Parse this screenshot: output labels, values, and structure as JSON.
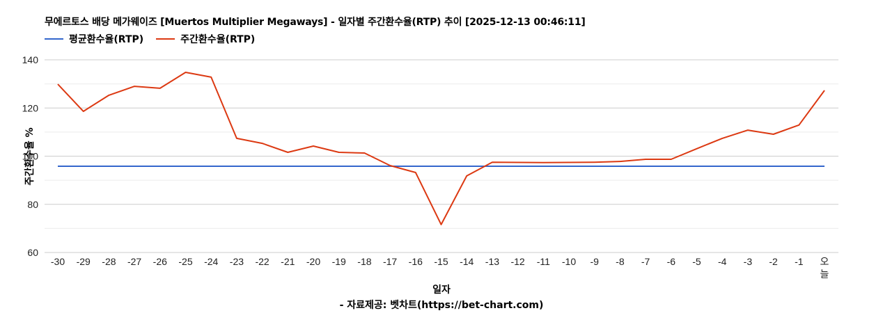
{
  "chart_data": {
    "type": "line",
    "title": "무에르토스 배당  메가웨이즈 [Muertos Multiplier Megaways] - 일자별 주간환수율(RTP) 추이 [2025-12-13 00:46:11]",
    "xlabel": "일자",
    "ylabel": "주간환수율 %",
    "ylim": [
      60,
      140
    ],
    "yticks": [
      60,
      80,
      100,
      120,
      140
    ],
    "grid": true,
    "legend_position": "top-left",
    "categories": [
      "-30",
      "-29",
      "-28",
      "-27",
      "-26",
      "-25",
      "-24",
      "-23",
      "-22",
      "-21",
      "-20",
      "-19",
      "-18",
      "-17",
      "-16",
      "-15",
      "-14",
      "-13",
      "-12",
      "-11",
      "-10",
      "-9",
      "-8",
      "-7",
      "-6",
      "-5",
      "-4",
      "-3",
      "-2",
      "-1",
      "오늘"
    ],
    "series": [
      {
        "name": "평균환수율(RTP)",
        "color": "#3366cc",
        "values": [
          95.8,
          95.8,
          95.8,
          95.8,
          95.8,
          95.8,
          95.8,
          95.8,
          95.8,
          95.8,
          95.8,
          95.8,
          95.8,
          95.8,
          95.8,
          95.8,
          95.8,
          95.8,
          95.8,
          95.8,
          95.8,
          95.8,
          95.8,
          95.8,
          95.8,
          95.8,
          95.8,
          95.8,
          95.8,
          95.8,
          95.8
        ]
      },
      {
        "name": "주간환수율(RTP)",
        "color": "#dc3912",
        "values": [
          129.9,
          118.6,
          125.3,
          129.0,
          128.2,
          134.8,
          132.8,
          107.4,
          105.3,
          101.6,
          104.2,
          101.6,
          101.3,
          96.1,
          93.2,
          71.6,
          91.8,
          97.5,
          97.4,
          97.3,
          97.4,
          97.5,
          97.8,
          98.7,
          98.7,
          103.1,
          107.4,
          110.8,
          109.1,
          112.9,
          127.3
        ]
      }
    ],
    "credit": "- 자료제공: 벳차트(https://bet-chart.com)"
  },
  "header": {
    "title": "무에르토스 배당  메가웨이즈 [Muertos Multiplier Megaways] - 일자별 주간환수율(RTP) 추이 [2025-12-13 00:46:11]"
  },
  "legend": {
    "items": [
      {
        "label": "평균환수율(RTP)",
        "color": "#3366cc"
      },
      {
        "label": "주간환수율(RTP)",
        "color": "#dc3912"
      }
    ]
  },
  "axes": {
    "xlabel": "일자",
    "ylabel": "주간환수율 %"
  },
  "footer": {
    "credit": "- 자료제공: 벳차트(https://bet-chart.com)"
  }
}
